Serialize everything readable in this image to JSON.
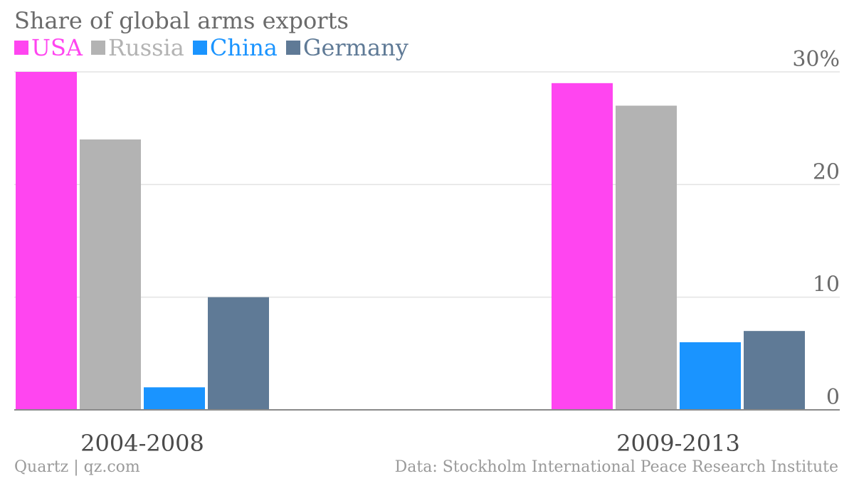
{
  "chart_data": {
    "type": "bar",
    "title": "Share of global arms exports",
    "categories": [
      "2004-2008",
      "2009-2013"
    ],
    "series": [
      {
        "name": "USA",
        "color": "#ff45f0",
        "values": [
          30,
          29
        ]
      },
      {
        "name": "Russia",
        "color": "#b3b3b3",
        "values": [
          24,
          27
        ]
      },
      {
        "name": "China",
        "color": "#1a94ff",
        "values": [
          2,
          6
        ]
      },
      {
        "name": "Germany",
        "color": "#5f7a96",
        "values": [
          10,
          7
        ]
      }
    ],
    "ylim": [
      0,
      30
    ],
    "yticks": [
      {
        "value": 0,
        "label": "0"
      },
      {
        "value": 10,
        "label": "10"
      },
      {
        "value": 20,
        "label": "20"
      },
      {
        "value": 30,
        "label": "30%"
      }
    ],
    "grid": true,
    "y_axis_side": "right",
    "legend_position": "top-left"
  },
  "footer": {
    "source_left": "Quartz | qz.com",
    "source_right": "Data: Stockholm International Peace Research Institute"
  }
}
